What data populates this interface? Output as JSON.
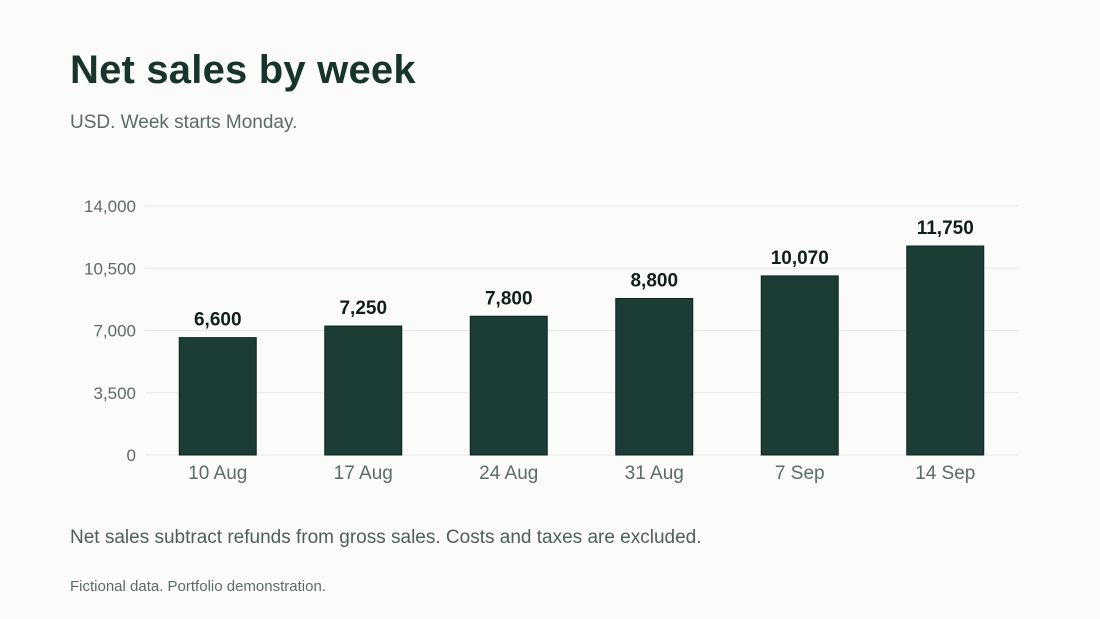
{
  "header": {
    "title": "Net sales by week",
    "subtitle": "USD. Week starts Monday."
  },
  "footer": {
    "note": "Net sales subtract refunds from gross sales. Costs and taxes are excluded.",
    "source": "Fictional data. Portfolio demonstration."
  },
  "colors": {
    "bar": "#1b3d35",
    "grid": "#e6e8e6",
    "tick_text": "#5b6b67",
    "label_text": "#0f1f1b"
  },
  "chart_data": {
    "type": "bar",
    "title": "Net sales by week",
    "subtitle": "USD. Week starts Monday.",
    "categories": [
      "10 Aug",
      "17 Aug",
      "24 Aug",
      "31 Aug",
      "7 Sep",
      "14 Sep"
    ],
    "values": [
      6600,
      7250,
      7800,
      8800,
      10070,
      11750
    ],
    "value_labels": [
      "6,600",
      "7,250",
      "7,800",
      "8,800",
      "10,070",
      "11,750"
    ],
    "ylim": [
      0,
      14000
    ],
    "yticks": [
      0,
      3500,
      7000,
      10500,
      14000
    ],
    "ytick_labels": [
      "0",
      "3,500",
      "7,000",
      "10,500",
      "14,000"
    ],
    "xlabel": "",
    "ylabel": "",
    "grid": true,
    "legend": "none"
  }
}
